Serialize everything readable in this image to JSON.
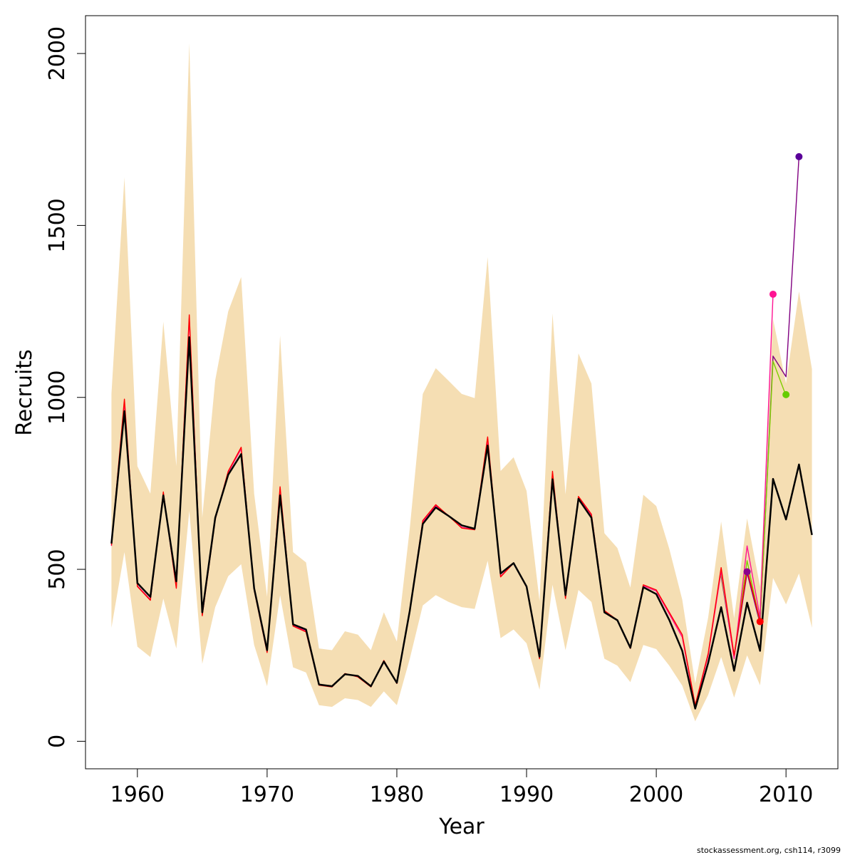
{
  "chart_data": {
    "type": "line",
    "xlabel": "Year",
    "ylabel": "Recruits",
    "xlim": [
      1956,
      2014
    ],
    "ylim": [
      -80,
      2110
    ],
    "xticks": [
      1960,
      1970,
      1980,
      1990,
      2000,
      2010
    ],
    "yticks": [
      0,
      500,
      1000,
      1500,
      2000
    ],
    "footer": "stockassessment.org, csh114, r3099",
    "band": {
      "color": "#f5deb3",
      "x": [
        1958,
        1959,
        1960,
        1961,
        1962,
        1963,
        1964,
        1965,
        1966,
        1967,
        1968,
        1969,
        1970,
        1971,
        1972,
        1973,
        1974,
        1975,
        1976,
        1977,
        1978,
        1979,
        1980,
        1981,
        1982,
        1983,
        1984,
        1985,
        1986,
        1987,
        1988,
        1989,
        1990,
        1991,
        1992,
        1993,
        1994,
        1995,
        1996,
        1997,
        1998,
        1999,
        2000,
        2001,
        2002,
        2003,
        2004,
        2005,
        2006,
        2007,
        2008,
        2009,
        2010,
        2011,
        2012
      ],
      "upper": [
        1010,
        1640,
        800,
        720,
        1220,
        800,
        2030,
        650,
        1050,
        1250,
        1350,
        720,
        420,
        1180,
        550,
        520,
        270,
        265,
        320,
        310,
        265,
        375,
        290,
        620,
        1010,
        1085,
        1048,
        1010,
        998,
        1408,
        786,
        826,
        728,
        408,
        1244,
        718,
        1128,
        1040,
        605,
        562,
        447,
        717,
        684,
        560,
        412,
        168,
        360,
        639,
        358,
        648,
        450,
        1228,
        1040,
        1308,
        1082
      ],
      "lower": [
        330,
        550,
        275,
        245,
        415,
        270,
        670,
        225,
        390,
        480,
        515,
        280,
        160,
        425,
        215,
        200,
        105,
        100,
        125,
        120,
        100,
        145,
        105,
        240,
        395,
        425,
        405,
        390,
        385,
        525,
        300,
        325,
        285,
        150,
        455,
        265,
        440,
        405,
        240,
        220,
        172,
        280,
        268,
        220,
        162,
        58,
        135,
        245,
        127,
        250,
        163,
        475,
        398,
        488,
        330
      ]
    },
    "series": [
      {
        "color": "#000000",
        "x": [
          1958,
          1959,
          1960,
          1961,
          1962,
          1963,
          1964,
          1965,
          1966,
          1967,
          1968,
          1969,
          1970,
          1971,
          1972,
          1973,
          1974,
          1975,
          1976,
          1977,
          1978,
          1979,
          1980,
          1981,
          1982,
          1983,
          1984,
          1985,
          1986,
          1987,
          1988,
          1989,
          1990,
          1991,
          1992,
          1993,
          1994,
          1995,
          1996,
          1997,
          1998,
          1999,
          2000,
          2001,
          2002,
          2003,
          2004,
          2005,
          2006,
          2007,
          2008,
          2009,
          2010,
          2011,
          2012
        ],
        "values": [
          575,
          960,
          460,
          420,
          715,
          465,
          1175,
          375,
          650,
          775,
          835,
          445,
          265,
          715,
          340,
          325,
          165,
          160,
          195,
          190,
          160,
          232,
          170,
          380,
          632,
          680,
          655,
          628,
          618,
          860,
          488,
          518,
          450,
          246,
          762,
          425,
          705,
          650,
          375,
          352,
          272,
          448,
          428,
          353,
          263,
          95,
          228,
          390,
          205,
          403,
          263,
          763,
          645,
          805,
          600
        ]
      },
      {
        "color": "#ff0000",
        "x": [
          1958,
          1959,
          1960,
          1961,
          1962,
          1963,
          1964,
          1965,
          1966,
          1967,
          1968,
          1969,
          1970,
          1971,
          1972,
          1973,
          1974,
          1975,
          1976,
          1977,
          1978,
          1979,
          1980,
          1981,
          1982,
          1983,
          1984,
          1985,
          1986,
          1987,
          1988,
          1989,
          1990,
          1991,
          1992,
          1993,
          1994,
          1995,
          1996,
          1997,
          1998,
          1999,
          2000,
          2001,
          2002,
          2003,
          2004,
          2005,
          2006,
          2007,
          2008
        ],
        "values": [
          570,
          995,
          450,
          410,
          725,
          445,
          1240,
          365,
          645,
          785,
          855,
          440,
          258,
          740,
          335,
          318,
          163,
          158,
          197,
          187,
          158,
          235,
          168,
          378,
          642,
          688,
          655,
          620,
          615,
          885,
          478,
          518,
          448,
          240,
          785,
          415,
          712,
          660,
          380,
          352,
          270,
          455,
          440,
          375,
          310,
          105,
          255,
          505,
          250,
          500,
          350
        ]
      },
      {
        "color": "#ff1493",
        "x": [
          1958,
          1959,
          1960,
          1961,
          1962,
          1963,
          1964,
          1965,
          1966,
          1967,
          1968,
          1969,
          1970,
          1971,
          1972,
          1973,
          1974,
          1975,
          1976,
          1977,
          1978,
          1979,
          1980,
          1981,
          1982,
          1983,
          1984,
          1985,
          1986,
          1987,
          1988,
          1989,
          1990,
          1991,
          1992,
          1993,
          1994,
          1995,
          1996,
          1997,
          1998,
          1999,
          2000,
          2001,
          2002,
          2003,
          2004,
          2005,
          2006,
          2007,
          2008,
          2009
        ],
        "values": [
          568,
          985,
          452,
          412,
          720,
          448,
          1230,
          368,
          648,
          782,
          850,
          442,
          260,
          732,
          338,
          320,
          164,
          159,
          196,
          188,
          159,
          234,
          169,
          379,
          638,
          685,
          656,
          622,
          616,
          875,
          480,
          518,
          449,
          242,
          778,
          418,
          710,
          657,
          378,
          352,
          271,
          452,
          437,
          370,
          303,
          102,
          250,
          495,
          240,
          568,
          360,
          1300
        ]
      },
      {
        "color": "#7fce00",
        "x": [
          2005,
          2006,
          2007,
          2008,
          2009,
          2010
        ],
        "values": [
          485,
          248,
          525,
          345,
          1105,
          1005
        ]
      },
      {
        "color": "#800080",
        "x": [
          2005,
          2006,
          2007,
          2008,
          2009,
          2010,
          2011
        ],
        "values": [
          480,
          245,
          490,
          342,
          1120,
          1060,
          1700
        ]
      }
    ],
    "endpoints": [
      {
        "x": 2007,
        "y": 493,
        "color": "#8b008b"
      },
      {
        "x": 2008,
        "y": 348,
        "color": "#ff0000"
      },
      {
        "x": 2009,
        "y": 1300,
        "color": "#ff1493"
      },
      {
        "x": 2010,
        "y": 1008,
        "color": "#66cc00"
      },
      {
        "x": 2011,
        "y": 1700,
        "color": "#5a0099"
      }
    ]
  }
}
